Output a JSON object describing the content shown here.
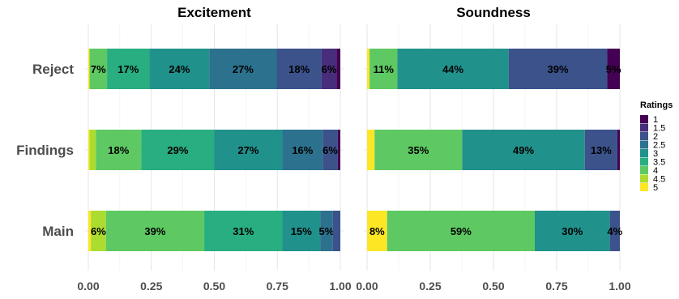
{
  "chart_data": {
    "type": "bar",
    "orientation": "horizontal",
    "stacked": true,
    "categories": [
      "Reject",
      "Findings",
      "Main"
    ],
    "xlim": [
      0,
      1
    ],
    "xticks": [
      "0.00",
      "0.25",
      "0.50",
      "0.75",
      "1.00"
    ],
    "legend": {
      "title": "Ratings",
      "position": "right",
      "entries": [
        "1",
        "1.5",
        "2",
        "2.5",
        "3",
        "3.5",
        "4",
        "4.5",
        "5"
      ],
      "colors": [
        "#440154",
        "#472d7b",
        "#3b528b",
        "#2c728e",
        "#21918c",
        "#28ae80",
        "#5ec962",
        "#addc30",
        "#fde725"
      ]
    },
    "panels": [
      {
        "title": "Excitement",
        "rows": [
          {
            "category": "Reject",
            "segments": [
              {
                "rating": "5",
                "value": 0.005,
                "label": ""
              },
              {
                "rating": "4.5",
                "value": 0.0,
                "label": ""
              },
              {
                "rating": "4",
                "value": 0.07,
                "label": "7%"
              },
              {
                "rating": "3.5",
                "value": 0.17,
                "label": "17%"
              },
              {
                "rating": "3",
                "value": 0.24,
                "label": "24%"
              },
              {
                "rating": "2.5",
                "value": 0.27,
                "label": "27%"
              },
              {
                "rating": "2",
                "value": 0.18,
                "label": "18%"
              },
              {
                "rating": "1.5",
                "value": 0.06,
                "label": "6%"
              },
              {
                "rating": "1",
                "value": 0.015,
                "label": ""
              }
            ]
          },
          {
            "category": "Findings",
            "segments": [
              {
                "rating": "5",
                "value": 0.005,
                "label": ""
              },
              {
                "rating": "4.5",
                "value": 0.025,
                "label": ""
              },
              {
                "rating": "4",
                "value": 0.18,
                "label": "18%"
              },
              {
                "rating": "3.5",
                "value": 0.29,
                "label": "29%"
              },
              {
                "rating": "3",
                "value": 0.27,
                "label": "27%"
              },
              {
                "rating": "2.5",
                "value": 0.16,
                "label": "16%"
              },
              {
                "rating": "2",
                "value": 0.06,
                "label": "6%"
              },
              {
                "rating": "1.5",
                "value": 0.0,
                "label": ""
              },
              {
                "rating": "1",
                "value": 0.01,
                "label": ""
              }
            ]
          },
          {
            "category": "Main",
            "segments": [
              {
                "rating": "5",
                "value": 0.01,
                "label": ""
              },
              {
                "rating": "4.5",
                "value": 0.06,
                "label": "6%"
              },
              {
                "rating": "4",
                "value": 0.39,
                "label": "39%"
              },
              {
                "rating": "3.5",
                "value": 0.31,
                "label": "31%"
              },
              {
                "rating": "3",
                "value": 0.15,
                "label": "15%"
              },
              {
                "rating": "2.5",
                "value": 0.05,
                "label": "5%"
              },
              {
                "rating": "2",
                "value": 0.03,
                "label": ""
              },
              {
                "rating": "1.5",
                "value": 0.0,
                "label": ""
              },
              {
                "rating": "1",
                "value": 0.0,
                "label": ""
              }
            ]
          }
        ]
      },
      {
        "title": "Soundness",
        "rows": [
          {
            "category": "Reject",
            "segments": [
              {
                "rating": "5",
                "value": 0.01,
                "label": ""
              },
              {
                "rating": "4.5",
                "value": 0.0,
                "label": ""
              },
              {
                "rating": "4",
                "value": 0.11,
                "label": "11%"
              },
              {
                "rating": "3.5",
                "value": 0.0,
                "label": ""
              },
              {
                "rating": "3",
                "value": 0.44,
                "label": "44%"
              },
              {
                "rating": "2.5",
                "value": 0.0,
                "label": ""
              },
              {
                "rating": "2",
                "value": 0.39,
                "label": "39%"
              },
              {
                "rating": "1.5",
                "value": 0.0,
                "label": ""
              },
              {
                "rating": "1",
                "value": 0.05,
                "label": "5%"
              }
            ]
          },
          {
            "category": "Findings",
            "segments": [
              {
                "rating": "5",
                "value": 0.03,
                "label": ""
              },
              {
                "rating": "4.5",
                "value": 0.0,
                "label": ""
              },
              {
                "rating": "4",
                "value": 0.35,
                "label": "35%"
              },
              {
                "rating": "3.5",
                "value": 0.0,
                "label": ""
              },
              {
                "rating": "3",
                "value": 0.49,
                "label": "49%"
              },
              {
                "rating": "2.5",
                "value": 0.0,
                "label": ""
              },
              {
                "rating": "2",
                "value": 0.13,
                "label": "13%"
              },
              {
                "rating": "1.5",
                "value": 0.0,
                "label": ""
              },
              {
                "rating": "1",
                "value": 0.01,
                "label": ""
              }
            ]
          },
          {
            "category": "Main",
            "segments": [
              {
                "rating": "5",
                "value": 0.08,
                "label": "8%"
              },
              {
                "rating": "4.5",
                "value": 0.0,
                "label": ""
              },
              {
                "rating": "4",
                "value": 0.59,
                "label": "59%"
              },
              {
                "rating": "3.5",
                "value": 0.0,
                "label": ""
              },
              {
                "rating": "3",
                "value": 0.3,
                "label": "30%"
              },
              {
                "rating": "2.5",
                "value": 0.0,
                "label": ""
              },
              {
                "rating": "2",
                "value": 0.04,
                "label": "4%"
              },
              {
                "rating": "1.5",
                "value": 0.0,
                "label": ""
              },
              {
                "rating": "1",
                "value": 0.0,
                "label": ""
              }
            ]
          }
        ]
      }
    ]
  }
}
